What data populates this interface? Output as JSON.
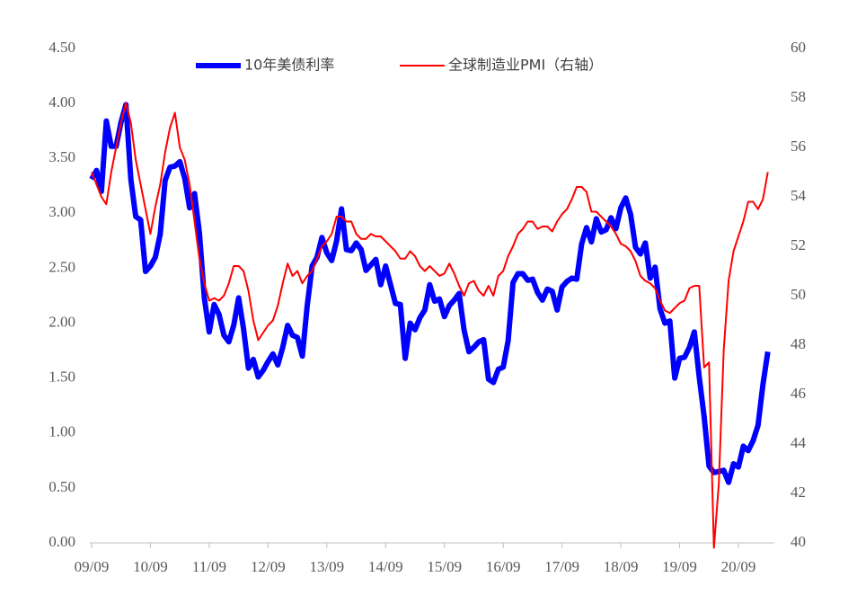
{
  "chart_data": {
    "type": "line",
    "x": [
      "09/09",
      "09/10",
      "09/11",
      "09/12",
      "10/01",
      "10/02",
      "10/03",
      "10/04",
      "10/05",
      "10/06",
      "10/07",
      "10/08",
      "10/09",
      "10/10",
      "10/11",
      "10/12",
      "11/01",
      "11/02",
      "11/03",
      "11/04",
      "11/05",
      "11/06",
      "11/07",
      "11/08",
      "11/09",
      "11/10",
      "11/11",
      "11/12",
      "12/01",
      "12/02",
      "12/03",
      "12/04",
      "12/05",
      "12/06",
      "12/07",
      "12/08",
      "12/09",
      "12/10",
      "12/11",
      "12/12",
      "13/01",
      "13/02",
      "13/03",
      "13/04",
      "13/05",
      "13/06",
      "13/07",
      "13/08",
      "13/09",
      "13/10",
      "13/11",
      "13/12",
      "14/01",
      "14/02",
      "14/03",
      "14/04",
      "14/05",
      "14/06",
      "14/07",
      "14/08",
      "14/09",
      "14/10",
      "14/11",
      "14/12",
      "15/01",
      "15/02",
      "15/03",
      "15/04",
      "15/05",
      "15/06",
      "15/07",
      "15/08",
      "15/09",
      "15/10",
      "15/11",
      "15/12",
      "16/01",
      "16/02",
      "16/03",
      "16/04",
      "16/05",
      "16/06",
      "16/07",
      "16/08",
      "16/09",
      "16/10",
      "16/11",
      "16/12",
      "17/01",
      "17/02",
      "17/03",
      "17/04",
      "17/05",
      "17/06",
      "17/07",
      "17/08",
      "17/09",
      "17/10",
      "17/11",
      "17/12",
      "18/01",
      "18/02",
      "18/03",
      "18/04",
      "18/05",
      "18/06",
      "18/07",
      "18/08",
      "18/09",
      "18/10",
      "18/11",
      "18/12",
      "19/01",
      "19/02",
      "19/03",
      "19/04",
      "19/05",
      "19/06",
      "19/07",
      "19/08",
      "19/09",
      "19/10",
      "19/11",
      "19/12",
      "20/01",
      "20/02",
      "20/03",
      "20/04",
      "20/05",
      "20/06",
      "20/07",
      "20/08",
      "20/09",
      "20/10",
      "20/11",
      "20/12",
      "21/01",
      "21/02",
      "21/03"
    ],
    "xticks": [
      "09/09",
      "10/09",
      "11/09",
      "12/09",
      "13/09",
      "14/09",
      "15/09",
      "16/09",
      "17/09",
      "18/09",
      "19/09",
      "20/09"
    ],
    "series": [
      {
        "name": "10年美债利率",
        "color": "#0000ff",
        "axis": "y",
        "values": [
          3.31,
          3.39,
          3.2,
          3.84,
          3.61,
          3.61,
          3.83,
          3.99,
          3.31,
          2.97,
          2.94,
          2.47,
          2.52,
          2.6,
          2.81,
          3.3,
          3.42,
          3.43,
          3.47,
          3.32,
          3.05,
          3.18,
          2.82,
          2.23,
          1.92,
          2.17,
          2.08,
          1.89,
          1.83,
          1.98,
          2.23,
          1.95,
          1.59,
          1.67,
          1.51,
          1.57,
          1.65,
          1.72,
          1.62,
          1.78,
          1.98,
          1.89,
          1.87,
          1.7,
          2.16,
          2.52,
          2.6,
          2.78,
          2.64,
          2.57,
          2.75,
          3.04,
          2.67,
          2.66,
          2.73,
          2.67,
          2.48,
          2.53,
          2.58,
          2.35,
          2.52,
          2.35,
          2.18,
          2.17,
          1.68,
          2.0,
          1.94,
          2.05,
          2.12,
          2.35,
          2.2,
          2.22,
          2.06,
          2.16,
          2.21,
          2.27,
          1.94,
          1.74,
          1.78,
          1.83,
          1.85,
          1.49,
          1.46,
          1.58,
          1.6,
          1.84,
          2.37,
          2.45,
          2.45,
          2.39,
          2.4,
          2.28,
          2.21,
          2.31,
          2.29,
          2.12,
          2.33,
          2.38,
          2.41,
          2.4,
          2.72,
          2.87,
          2.74,
          2.95,
          2.83,
          2.85,
          2.96,
          2.86,
          3.05,
          3.14,
          2.99,
          2.69,
          2.63,
          2.73,
          2.41,
          2.51,
          2.13,
          2.0,
          2.02,
          1.5,
          1.68,
          1.69,
          1.78,
          1.92,
          1.51,
          1.15,
          0.7,
          0.64,
          0.65,
          0.66,
          0.55,
          0.72,
          0.69,
          0.88,
          0.84,
          0.93,
          1.07,
          1.44,
          1.74
        ]
      },
      {
        "name": "全球制造业PMI（右轴）",
        "color": "#ff0000",
        "axis": "y2",
        "values": [
          55.0,
          54.5,
          54.0,
          53.7,
          55.0,
          56.0,
          57.0,
          57.8,
          57.0,
          55.5,
          54.5,
          53.5,
          52.5,
          53.6,
          54.5,
          55.8,
          56.8,
          57.4,
          56.0,
          55.5,
          54.5,
          53.0,
          51.5,
          50.5,
          49.8,
          49.9,
          49.8,
          50.0,
          50.5,
          51.2,
          51.2,
          51.0,
          50.2,
          49.0,
          48.2,
          48.5,
          48.8,
          49.0,
          49.6,
          50.5,
          51.3,
          50.8,
          51.0,
          50.5,
          50.8,
          51.0,
          51.5,
          52.0,
          52.2,
          52.5,
          53.2,
          53.2,
          53.0,
          53.0,
          52.5,
          52.3,
          52.3,
          52.5,
          52.4,
          52.4,
          52.2,
          52.0,
          51.8,
          51.5,
          51.5,
          51.8,
          51.6,
          51.2,
          51.0,
          51.2,
          51.0,
          50.8,
          50.9,
          51.3,
          50.9,
          50.4,
          50.0,
          50.5,
          50.6,
          50.2,
          50.0,
          50.4,
          50.0,
          50.8,
          51.0,
          51.6,
          52.0,
          52.5,
          52.7,
          53.0,
          53.0,
          52.7,
          52.8,
          52.8,
          52.6,
          53.0,
          53.3,
          53.5,
          53.9,
          54.4,
          54.4,
          54.2,
          53.4,
          53.4,
          53.2,
          53.0,
          52.8,
          52.5,
          52.1,
          52.0,
          51.8,
          51.4,
          50.8,
          50.6,
          50.5,
          50.3,
          49.8,
          49.4,
          49.3,
          49.5,
          49.7,
          49.8,
          50.3,
          50.4,
          50.4,
          47.1,
          47.3,
          39.8,
          42.4,
          47.8,
          50.6,
          51.8,
          52.4,
          53.0,
          53.8,
          53.8,
          53.5,
          53.9,
          55.0
        ]
      }
    ],
    "ylim": [
      0,
      4.5
    ],
    "yticks": [
      {
        "value": 0,
        "label": "0.00"
      },
      {
        "value": 0.5,
        "label": "0.50"
      },
      {
        "value": 1,
        "label": "1.00"
      },
      {
        "value": 1.5,
        "label": "1.50"
      },
      {
        "value": 2,
        "label": "2.00"
      },
      {
        "value": 2.5,
        "label": "2.50"
      },
      {
        "value": 3,
        "label": "3.00"
      },
      {
        "value": 3.5,
        "label": "3.50"
      },
      {
        "value": 4,
        "label": "4.00"
      },
      {
        "value": 4.5,
        "label": "4.50"
      }
    ],
    "y2lim": [
      40,
      60
    ],
    "y2ticks": [
      40,
      42,
      44,
      46,
      48,
      50,
      52,
      54,
      56,
      58,
      60
    ],
    "legend": "top"
  }
}
